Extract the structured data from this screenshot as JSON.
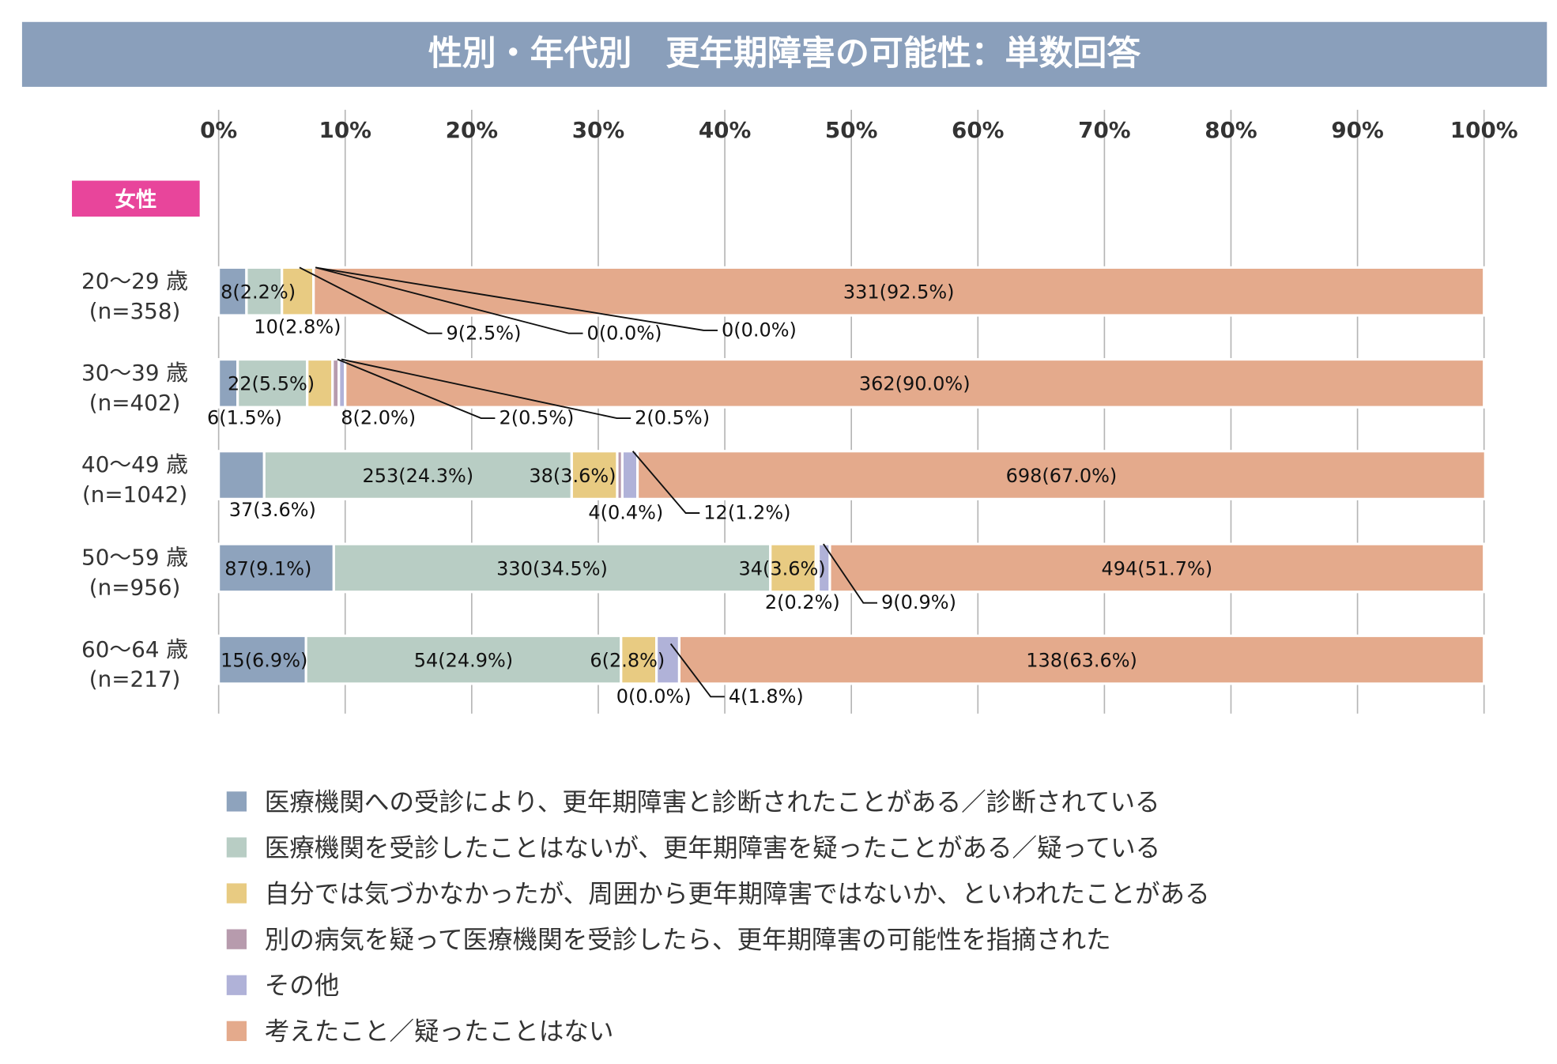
{
  "chart_data": {
    "type": "bar",
    "orientation": "horizontal",
    "stacked": "100%",
    "title": "性別・年代別　更年期障害の可能性：単数回答",
    "group_label": "女性",
    "xlim": [
      0,
      100
    ],
    "x_ticks": [
      "0%",
      "10%",
      "20%",
      "30%",
      "40%",
      "50%",
      "60%",
      "70%",
      "80%",
      "90%",
      "100%"
    ],
    "grid": true,
    "legend_position": "bottom",
    "categories": [
      {
        "label": "20～29 歳",
        "n": "(n=358)"
      },
      {
        "label": "30～39 歳",
        "n": "(n=402)"
      },
      {
        "label": "40～49 歳",
        "n": "(n=1042)"
      },
      {
        "label": "50～59 歳",
        "n": "(n=956)"
      },
      {
        "label": "60～64 歳",
        "n": "(n=217)"
      }
    ],
    "series": [
      {
        "name": "医療機関への受診により、更年期障害と診断されたことがある／診断されている",
        "color": "#8ea3bd",
        "counts": [
          8,
          6,
          37,
          87,
          15
        ],
        "values": [
          2.2,
          1.5,
          3.6,
          9.1,
          6.9
        ]
      },
      {
        "name": "医療機関を受診したことはないが、更年期障害を疑ったことがある／疑っている",
        "color": "#b8cdc4",
        "counts": [
          10,
          22,
          253,
          330,
          54
        ],
        "values": [
          2.8,
          5.5,
          24.3,
          34.5,
          24.9
        ]
      },
      {
        "name": "自分では気づかなかったが、周囲から更年期障害ではないか、といわれたことがある",
        "color": "#e8cb82",
        "counts": [
          9,
          8,
          38,
          34,
          6
        ],
        "values": [
          2.5,
          2.0,
          3.6,
          3.6,
          2.8
        ]
      },
      {
        "name": "別の病気を疑って医療機関を受診したら、更年期障害の可能性を指摘された",
        "color": "#b79bad",
        "counts": [
          0,
          2,
          4,
          2,
          0
        ],
        "values": [
          0.0,
          0.5,
          0.4,
          0.2,
          0.0
        ]
      },
      {
        "name": "その他",
        "color": "#b0b2d8",
        "counts": [
          0,
          2,
          12,
          9,
          4
        ],
        "values": [
          0.0,
          0.5,
          1.2,
          0.9,
          1.8
        ]
      },
      {
        "name": "考えたこと／疑ったことはない",
        "color": "#e4aa8c",
        "counts": [
          331,
          362,
          698,
          494,
          138
        ],
        "values": [
          92.5,
          90.0,
          67.0,
          51.7,
          63.6
        ]
      }
    ],
    "title_bar_color": "#8a9fbb",
    "group_badge_color": "#e8459b"
  }
}
